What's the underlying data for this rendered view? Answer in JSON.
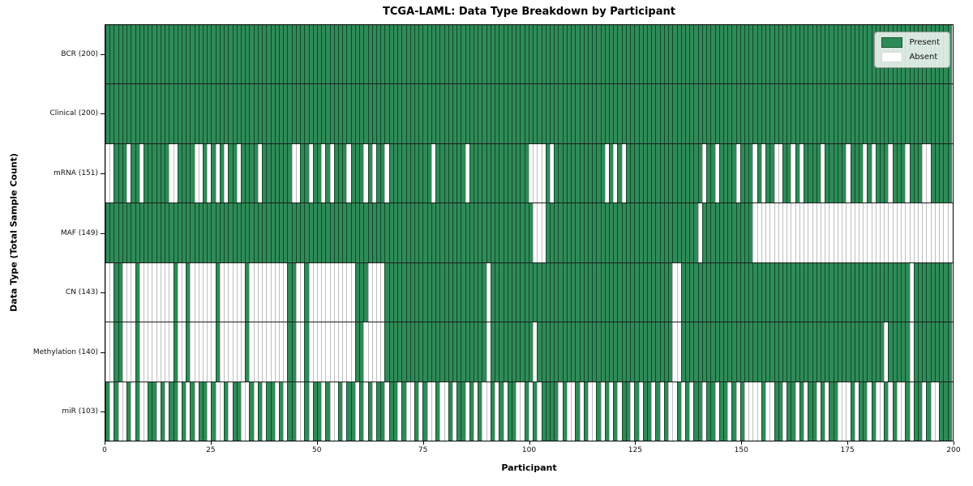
{
  "title": "TCGA-LAML: Data Type Breakdown by Participant",
  "xlabel": "Participant",
  "ylabel": "Data Type (Total Sample Count)",
  "legend": {
    "present_label": "Present",
    "absent_label": "Absent",
    "position": "upper right"
  },
  "colors": {
    "present": "#2e8b57",
    "absent": "#ffffff",
    "present_edge": "rgba(5,35,20,0.65)",
    "absent_edge": "#bfbfbf",
    "row_separator": "#1c1c1c",
    "plot_border": "#000000"
  },
  "x_axis": {
    "ticks": [
      "0",
      "25",
      "50",
      "75",
      "100",
      "125",
      "150",
      "175",
      "200"
    ]
  },
  "chart_data": {
    "type": "heatmap",
    "title": "TCGA-LAML: Data Type Breakdown by Participant",
    "xlabel": "Participant",
    "ylabel": "Data Type (Total Sample Count)",
    "x_range": [
      0,
      200
    ],
    "n_participants": 200,
    "legend_entries": [
      "Present",
      "Absent"
    ],
    "legend_position": "upper right",
    "grid": false,
    "cell_values": {
      "1": "Present",
      "0": "Absent"
    },
    "rows": [
      {
        "label": "BCR (200)",
        "name": "bcr",
        "total_present": 200,
        "pattern_groups": [
          "11111111111111111111",
          "11111111111111111111",
          "11111111111111111111",
          "11111111111111111111",
          "11111111111111111111",
          "11111111111111111111",
          "11111111111111111111",
          "11111111111111111111",
          "11111111111111111111",
          "11111111111111111111"
        ]
      },
      {
        "label": "Clinical (200)",
        "name": "clinical",
        "total_present": 200,
        "pattern_groups": [
          "11111111111111111111",
          "11111111111111111111",
          "11111111111111111111",
          "11111111111111111111",
          "11111111111111111111",
          "11111111111111111111",
          "11111111111111111111",
          "11111111111111111111",
          "11111111111111111111",
          "11111111111111111111"
        ]
      },
      {
        "label": "mRNA (151)",
        "name": "mrna",
        "total_present": 151,
        "pattern_groups": [
          "00111011011111100111",
          "10010101011011110111",
          "11110011011010111011",
          "10101101111111111011",
          "11111011111111111111",
          "00001011111111111101",
          "01011111111111111111",
          "10110111101110101100",
          "11010111101111101110",
          "10111011101110011111"
        ]
      },
      {
        "label": "MAF (149)",
        "name": "maf",
        "total_present": 149,
        "pattern_groups": [
          "11111111111111111111",
          "11111111111111111111",
          "11111111111111111111",
          "11111111111111111111",
          "11111111111111111111",
          "10001111111111111111",
          "11111111111111111111",
          "01111111111110000000",
          "00000000000000000000",
          "00000000000000000000"
        ]
      },
      {
        "label": "CN (143)",
        "name": "cn",
        "total_present": 143,
        "pattern_groups": [
          "00110001000000001001",
          "00000010000001000000",
          "00011001000000000001",
          "11000011111111111111",
          "11111111110111111111",
          "11111111111111111111",
          "11111111111111001111",
          "11111111111111111111",
          "11111111111111111111",
          "11111111110111111111"
        ]
      },
      {
        "label": "Methylation (140)",
        "name": "methylation",
        "total_present": 140,
        "pattern_groups": [
          "00110001000000001001",
          "00000010000001000000",
          "00011001000000000001",
          "10000011111111111111",
          "11111111110111111111",
          "10111111111111111111",
          "11111111111111001111",
          "11111111111111111111",
          "11111111111111111111",
          "11110111110111111111"
        ]
      },
      {
        "label": "miR (103)",
        "name": "mir",
        "total_present": 103,
        "pattern_groups": [
          "10100101001101011010",
          "10110100101100101011",
          "01011001011010010110",
          "10101101101001010010",
          "01011010100101011001",
          "01011110100101001010",
          "10110101101010010101",
          "10110110101000010011",
          "01101011010110001011",
          "01001010010110100111"
        ]
      }
    ]
  }
}
